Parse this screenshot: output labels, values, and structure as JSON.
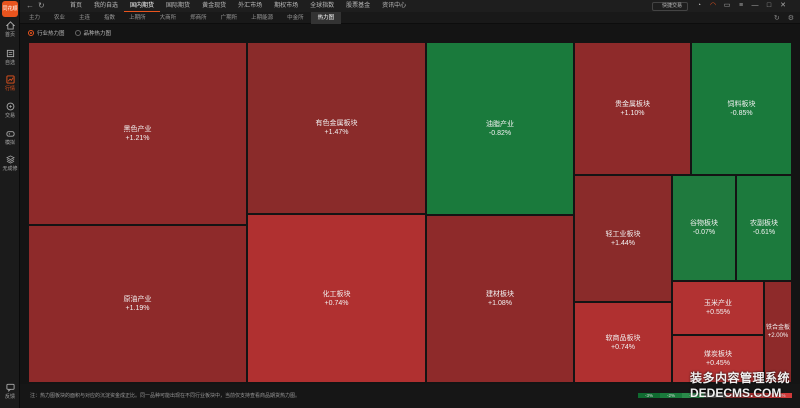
{
  "app": {
    "logo_text": "同花顺"
  },
  "sidebar": {
    "items": [
      {
        "label": "首页",
        "icon": "home-icon"
      },
      {
        "label": "自选",
        "icon": "watchlist-icon"
      },
      {
        "label": "行情",
        "icon": "chart-icon"
      },
      {
        "label": "交易",
        "icon": "trade-icon"
      },
      {
        "label": "模拟",
        "icon": "gamepad-icon"
      },
      {
        "label": "无成修",
        "icon": "layers-icon"
      }
    ],
    "feedback_label": "反馈"
  },
  "topnav": {
    "back": "←",
    "refresh": "↻",
    "items": [
      "首页",
      "我的自选",
      "国内期货",
      "国际期货",
      "黄金现货",
      "外汇市场",
      "期权市场",
      "全球指数",
      "股票基金",
      "资讯中心"
    ],
    "active_index": 2,
    "quick_trade": "快捷交易",
    "icons": [
      "bell-icon",
      "alert-icon",
      "chat-icon",
      "menu-icon",
      "minimize-icon",
      "maximize-icon",
      "close-icon"
    ]
  },
  "subtabs": {
    "items": [
      "主力",
      "农业",
      "主连",
      "指数",
      "上期所",
      "大商所",
      "郑商所",
      "广期所",
      "上期能源",
      "中金所",
      "热力图"
    ],
    "active_index": 10
  },
  "heatmap_mode": {
    "options": [
      "行业热力图",
      "品种热力图"
    ],
    "selected": 0
  },
  "tiles": [
    {
      "name": "黑色产业",
      "pct": "+1.21%",
      "color": "#8e2a2a"
    },
    {
      "name": "原油产业",
      "pct": "+1.19%",
      "color": "#8e2a2a"
    },
    {
      "name": "有色金属板块",
      "pct": "+1.47%",
      "color": "#8a2b2a"
    },
    {
      "name": "化工板块",
      "pct": "+0.74%",
      "color": "#b03030"
    },
    {
      "name": "油脂产业",
      "pct": "-0.82%",
      "color": "#1a7a3c"
    },
    {
      "name": "建材板块",
      "pct": "+1.08%",
      "color": "#8e2a2a"
    },
    {
      "name": "贵金属板块",
      "pct": "+1.10%",
      "color": "#8e2a2a"
    },
    {
      "name": "饲料板块",
      "pct": "-0.85%",
      "color": "#1a7a3c"
    },
    {
      "name": "轻工业板块",
      "pct": "+1.44%",
      "color": "#8a2b2a"
    },
    {
      "name": "谷物板块",
      "pct": "-0.07%",
      "color": "#1f7a3e"
    },
    {
      "name": "农副板块",
      "pct": "-0.61%",
      "color": "#1c7a3d"
    },
    {
      "name": "软商品板块",
      "pct": "+0.74%",
      "color": "#b03030"
    },
    {
      "name": "玉米产业",
      "pct": "+0.55%",
      "color": "#b23232"
    },
    {
      "name": "煤炭板块",
      "pct": "+0.45%",
      "color": "#b23232"
    },
    {
      "name": "铁合金板",
      "pct": "+2.00%",
      "color": "#8e2a2a"
    }
  ],
  "footer": {
    "note": "注：热力图板块的面积与对应的沉淀资金成正比。同一品种可能出现在不同行业板块中，当前仅支持查看商品期货热力图。",
    "legend": [
      {
        "label": "-3%",
        "color": "#0f6b30"
      },
      {
        "label": "-2%",
        "color": "#1a7a3c"
      },
      {
        "label": "-1%",
        "color": "#2a8a4a"
      },
      {
        "label": "0%",
        "color": "#444444"
      },
      {
        "label": "+1%",
        "color": "#8e2a2a"
      },
      {
        "label": "+2%",
        "color": "#b03030"
      },
      {
        "label": "+3%",
        "color": "#d03a3a"
      }
    ]
  },
  "watermark": {
    "line1": "装多内容管理系统",
    "line2": "DEDECMS.COM"
  }
}
